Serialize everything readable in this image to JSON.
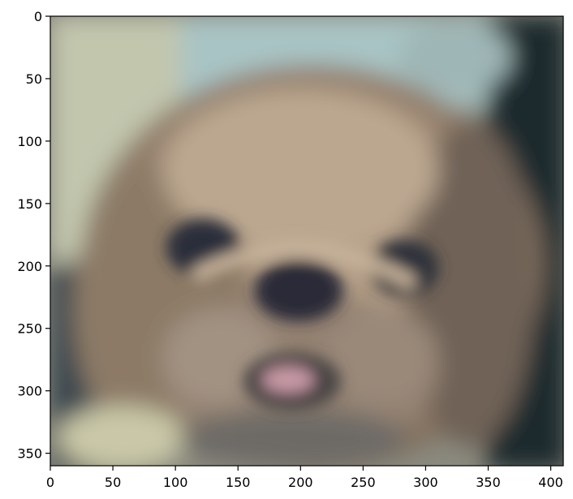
{
  "figure": {
    "type": "image",
    "subject": "blurred-dog-face-photo",
    "colors": {
      "background": "#ffffff",
      "axis": "#000000",
      "fur_light": "#b9a48c",
      "fur_shadow": "#7d6a58",
      "sky_top": "#a7c3c6",
      "nose_eyes": "#2c2e3b",
      "tongue": "#c89aa6",
      "dark_left": "#3a474f",
      "dark_right": "#1f2a2e"
    }
  },
  "axes": {
    "x_ticks": [
      0,
      50,
      100,
      150,
      200,
      250,
      300,
      350,
      400
    ],
    "y_ticks": [
      0,
      50,
      100,
      150,
      200,
      250,
      300,
      350
    ],
    "xlim": [
      0,
      410
    ],
    "ylim_top_to_bottom": [
      0,
      360
    ]
  }
}
